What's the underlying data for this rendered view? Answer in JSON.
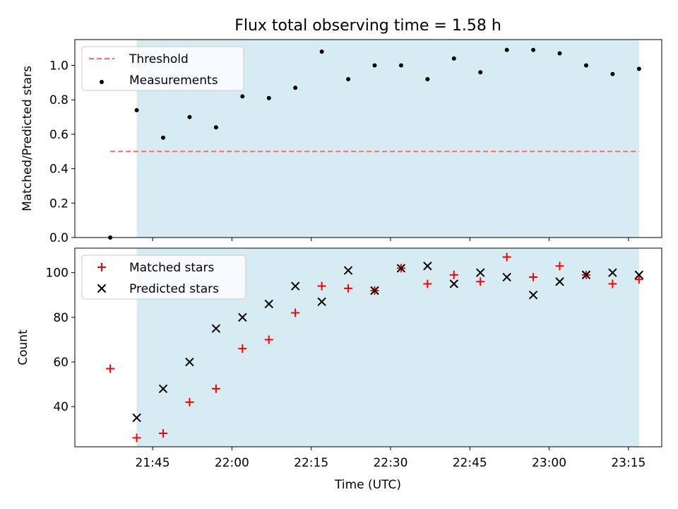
{
  "title": "Flux total observing time = 1.58 h",
  "colors": {
    "shade": "#add8e6",
    "threshold": "#ff6b6b",
    "measurements": "#000000",
    "matched": "#ff0000",
    "predicted": "#000000"
  },
  "xaxis": {
    "label": "Time (UTC)",
    "ticks": [
      "21:45",
      "22:00",
      "22:15",
      "22:30",
      "22:45",
      "23:00",
      "23:15"
    ],
    "tick_minutes": [
      1305,
      1320,
      1335,
      1350,
      1365,
      1380,
      1395
    ]
  },
  "chart_data": [
    {
      "type": "scatter",
      "ylabel": "Matched/Predicted stars",
      "ylim": [
        0,
        1.15
      ],
      "yticks": [
        "0.0",
        "0.2",
        "0.4",
        "0.6",
        "0.8",
        "1.0"
      ],
      "ytick_values": [
        0,
        0.2,
        0.4,
        0.6,
        0.8,
        1.0
      ],
      "grid": false,
      "legend_position": "top-left",
      "shaded_range": [
        "21:42",
        "23:17"
      ],
      "threshold": {
        "name": "Threshold",
        "value": 0.5,
        "x_range": [
          "21:37",
          "23:17"
        ]
      },
      "series": [
        {
          "name": "Measurements",
          "marker": "dot",
          "x": [
            "21:37",
            "21:42",
            "21:47",
            "21:52",
            "21:57",
            "22:02",
            "22:07",
            "22:12",
            "22:17",
            "22:22",
            "22:27",
            "22:32",
            "22:37",
            "22:42",
            "22:47",
            "22:52",
            "22:57",
            "23:02",
            "23:07",
            "23:12",
            "23:17"
          ],
          "y": [
            0.0,
            0.74,
            0.58,
            0.7,
            0.64,
            0.82,
            0.81,
            0.87,
            1.08,
            0.92,
            1.0,
            1.0,
            0.92,
            1.04,
            0.96,
            1.09,
            1.09,
            1.07,
            1.0,
            0.95,
            0.98
          ]
        }
      ]
    },
    {
      "type": "scatter",
      "ylabel": "Count",
      "ylim": [
        22,
        111
      ],
      "yticks": [
        "40",
        "60",
        "80",
        "100"
      ],
      "ytick_values": [
        40,
        60,
        80,
        100
      ],
      "grid": false,
      "legend_position": "top-left",
      "shaded_range": [
        "21:42",
        "23:17"
      ],
      "series": [
        {
          "name": "Matched stars",
          "marker": "plus",
          "x": [
            "21:37",
            "21:42",
            "21:47",
            "21:52",
            "21:57",
            "22:02",
            "22:07",
            "22:12",
            "22:17",
            "22:22",
            "22:27",
            "22:32",
            "22:37",
            "22:42",
            "22:47",
            "22:52",
            "22:57",
            "23:02",
            "23:07",
            "23:12",
            "23:17"
          ],
          "y": [
            57,
            26,
            28,
            42,
            48,
            66,
            70,
            82,
            94,
            93,
            92,
            102,
            95,
            99,
            96,
            107,
            98,
            103,
            99,
            95,
            97
          ]
        },
        {
          "name": "Predicted stars",
          "marker": "x",
          "x": [
            "21:42",
            "21:47",
            "21:52",
            "21:57",
            "22:02",
            "22:07",
            "22:12",
            "22:17",
            "22:22",
            "22:27",
            "22:32",
            "22:37",
            "22:42",
            "22:47",
            "22:52",
            "22:57",
            "23:02",
            "23:07",
            "23:12",
            "23:17"
          ],
          "y": [
            35,
            48,
            60,
            75,
            80,
            86,
            94,
            87,
            101,
            92,
            102,
            103,
            95,
            100,
            98,
            90,
            96,
            99,
            100,
            99
          ]
        }
      ]
    }
  ]
}
